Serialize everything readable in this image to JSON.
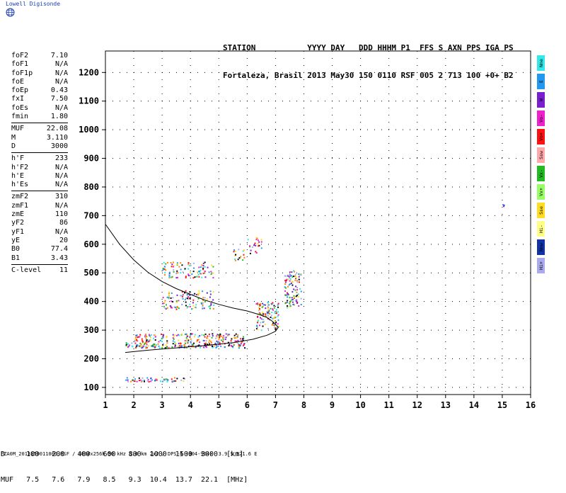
{
  "logo": {
    "text": "Lowell Digisonde"
  },
  "header": {
    "line1": "STATION           YYYY DAY   DDD HHHM P1  FFS S AXN PPS IGA PS",
    "line2": "Fortaleza, Brasil 2013 May30 150 0110 RSF 005 2 713 100 +0+ B2"
  },
  "params": [
    {
      "k": "foF2",
      "v": "7.10"
    },
    {
      "k": "foF1",
      "v": "N/A"
    },
    {
      "k": "foF1p",
      "v": "N/A"
    },
    {
      "k": "foE",
      "v": "N/A"
    },
    {
      "k": "foEp",
      "v": "0.43"
    },
    {
      "k": "fxI",
      "v": "7.50"
    },
    {
      "k": "foEs",
      "v": "N/A"
    },
    {
      "k": "fmin",
      "v": "1.80"
    },
    {
      "sep": true
    },
    {
      "k": "MUF",
      "v": "22.08"
    },
    {
      "k": "M",
      "v": "3.110"
    },
    {
      "k": "D",
      "v": "3000"
    },
    {
      "sep": true
    },
    {
      "k": "h'F",
      "v": "233"
    },
    {
      "k": "h'F2",
      "v": "N/A"
    },
    {
      "k": "h'E",
      "v": "N/A"
    },
    {
      "k": "h'Es",
      "v": "N/A"
    },
    {
      "sep": true
    },
    {
      "k": "zmF2",
      "v": "310"
    },
    {
      "k": "zmF1",
      "v": "N/A"
    },
    {
      "k": "zmE",
      "v": "110"
    },
    {
      "k": "yF2",
      "v": "86"
    },
    {
      "k": "yF1",
      "v": "N/A"
    },
    {
      "k": "yE",
      "v": "20"
    },
    {
      "k": "B0",
      "v": "77.4"
    },
    {
      "k": "B1",
      "v": "3.43"
    },
    {
      "sep": true
    },
    {
      "k": "C-level",
      "v": "11"
    }
  ],
  "modes": [
    {
      "label": "Nne",
      "color": "#33e8e8"
    },
    {
      "label": "E",
      "color": "#2299ee"
    },
    {
      "label": "W",
      "color": "#7a1fd0"
    },
    {
      "label": "Vo-",
      "color": "#ee22cc"
    },
    {
      "label": "Vo+",
      "color": "#ff1111"
    },
    {
      "label": "Ssw",
      "color": "#ffaaaa"
    },
    {
      "label": "Vx-",
      "color": "#22bb22"
    },
    {
      "label": "Vx+",
      "color": "#99ff66"
    },
    {
      "label": "Sse",
      "color": "#ffdd22"
    },
    {
      "label": "Hi-",
      "color": "#ffff88"
    },
    {
      "label": "Nnw",
      "color": "#1133aa"
    },
    {
      "label": "Hi+",
      "color": "#aaaaee"
    }
  ],
  "chart_data": {
    "type": "scatter",
    "title": "",
    "xlabel": "",
    "ylabel": "",
    "xlim": [
      1,
      16
    ],
    "ylim": [
      75,
      1275
    ],
    "xticks": [
      1,
      2,
      3,
      4,
      5,
      6,
      7,
      8,
      9,
      10,
      11,
      12,
      13,
      14,
      15,
      16
    ],
    "yticks": [
      100,
      200,
      300,
      400,
      500,
      600,
      700,
      800,
      900,
      1000,
      1100,
      1200
    ],
    "grid": true,
    "profile_curve": [
      [
        1.0,
        670
      ],
      [
        1.5,
        600
      ],
      [
        2.0,
        545
      ],
      [
        2.5,
        502
      ],
      [
        3.0,
        470
      ],
      [
        3.5,
        445
      ],
      [
        4.0,
        425
      ],
      [
        4.5,
        405
      ],
      [
        5.0,
        390
      ],
      [
        5.5,
        377
      ],
      [
        6.0,
        367
      ],
      [
        6.5,
        352
      ],
      [
        6.7,
        344
      ]
    ],
    "profile_nose": [
      [
        1.7,
        222
      ],
      [
        2.5,
        230
      ],
      [
        3.5,
        238
      ],
      [
        4.5,
        246
      ],
      [
        5.5,
        256
      ],
      [
        6.2,
        268
      ],
      [
        6.7,
        282
      ],
      [
        7.0,
        296
      ],
      [
        7.1,
        310
      ],
      [
        6.9,
        330
      ],
      [
        6.7,
        344
      ]
    ],
    "trace_clusters": [
      {
        "x0": 1.7,
        "x1": 5.9,
        "y0": 240,
        "y1": 258,
        "density": 0.9
      },
      {
        "x0": 2.0,
        "x1": 5.9,
        "y0": 258,
        "y1": 290,
        "density": 0.55
      },
      {
        "x0": 1.7,
        "x1": 3.8,
        "y0": 122,
        "y1": 136,
        "density": 0.7
      },
      {
        "x0": 3.0,
        "x1": 4.8,
        "y0": 375,
        "y1": 440,
        "density": 0.35
      },
      {
        "x0": 3.0,
        "x1": 4.8,
        "y0": 485,
        "y1": 540,
        "density": 0.35
      },
      {
        "x0": 5.5,
        "x1": 5.9,
        "y0": 545,
        "y1": 585,
        "density": 0.4
      },
      {
        "x0": 6.0,
        "x1": 6.5,
        "y0": 570,
        "y1": 625,
        "density": 0.3
      },
      {
        "x0": 6.3,
        "x1": 7.1,
        "y0": 300,
        "y1": 400,
        "density": 0.55
      },
      {
        "x0": 7.3,
        "x1": 7.9,
        "y0": 380,
        "y1": 510,
        "density": 0.5
      },
      {
        "x0": 15.0,
        "x1": 15.05,
        "y0": 725,
        "y1": 745,
        "density": 1.0
      }
    ],
    "colors": [
      "#000000",
      "#ff1111",
      "#ee22cc",
      "#2299ee",
      "#33e8e8",
      "#ffdd22",
      "#22bb22",
      "#7a1fd0",
      "#ff8800",
      "#aaaaee"
    ]
  },
  "muf_table": {
    "line1": "D     100   200   400   600   800  1000  1500  3000  [km]",
    "line2": "MUF   7.5   7.6   7.9   8.5   9.3  10.4  13.7  22.1  [MHz]"
  },
  "footer": "FZA0M_2013150011000.RSF / 300#x256h 50 kHz 5.0 km 2x2 / DPS-4 (904-904)  3.9 S 321.6 E"
}
